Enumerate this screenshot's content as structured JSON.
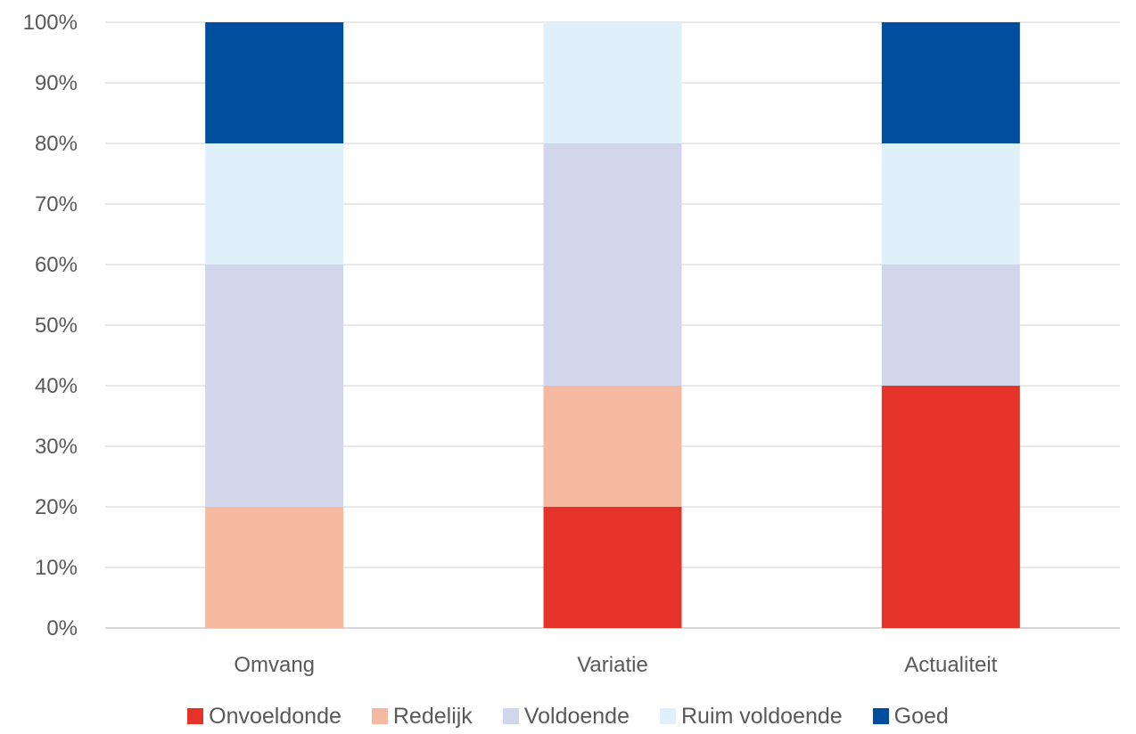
{
  "chart_data": {
    "type": "bar",
    "stacked": true,
    "categories": [
      "Omvang",
      "Variatie",
      "Actualiteit"
    ],
    "yticks": [
      "0%",
      "10%",
      "20%",
      "30%",
      "40%",
      "50%",
      "60%",
      "70%",
      "80%",
      "90%",
      "100%"
    ],
    "ylim": [
      0,
      100
    ],
    "grid": true,
    "legend_position": "bottom",
    "series": [
      {
        "name": "Onvoeldonde",
        "color": "#e63329",
        "values": [
          0,
          20,
          40
        ]
      },
      {
        "name": "Redelijk",
        "color": "#f5b8a0",
        "values": [
          20,
          20,
          0
        ]
      },
      {
        "name": "Voldoende",
        "color": "#d2d6eb",
        "values": [
          40,
          40,
          20
        ]
      },
      {
        "name": "Ruim voldoende",
        "color": "#dff0fb",
        "values": [
          20,
          20,
          20
        ]
      },
      {
        "name": "Goed",
        "color": "#004f9f",
        "values": [
          20,
          0,
          20
        ]
      }
    ]
  }
}
